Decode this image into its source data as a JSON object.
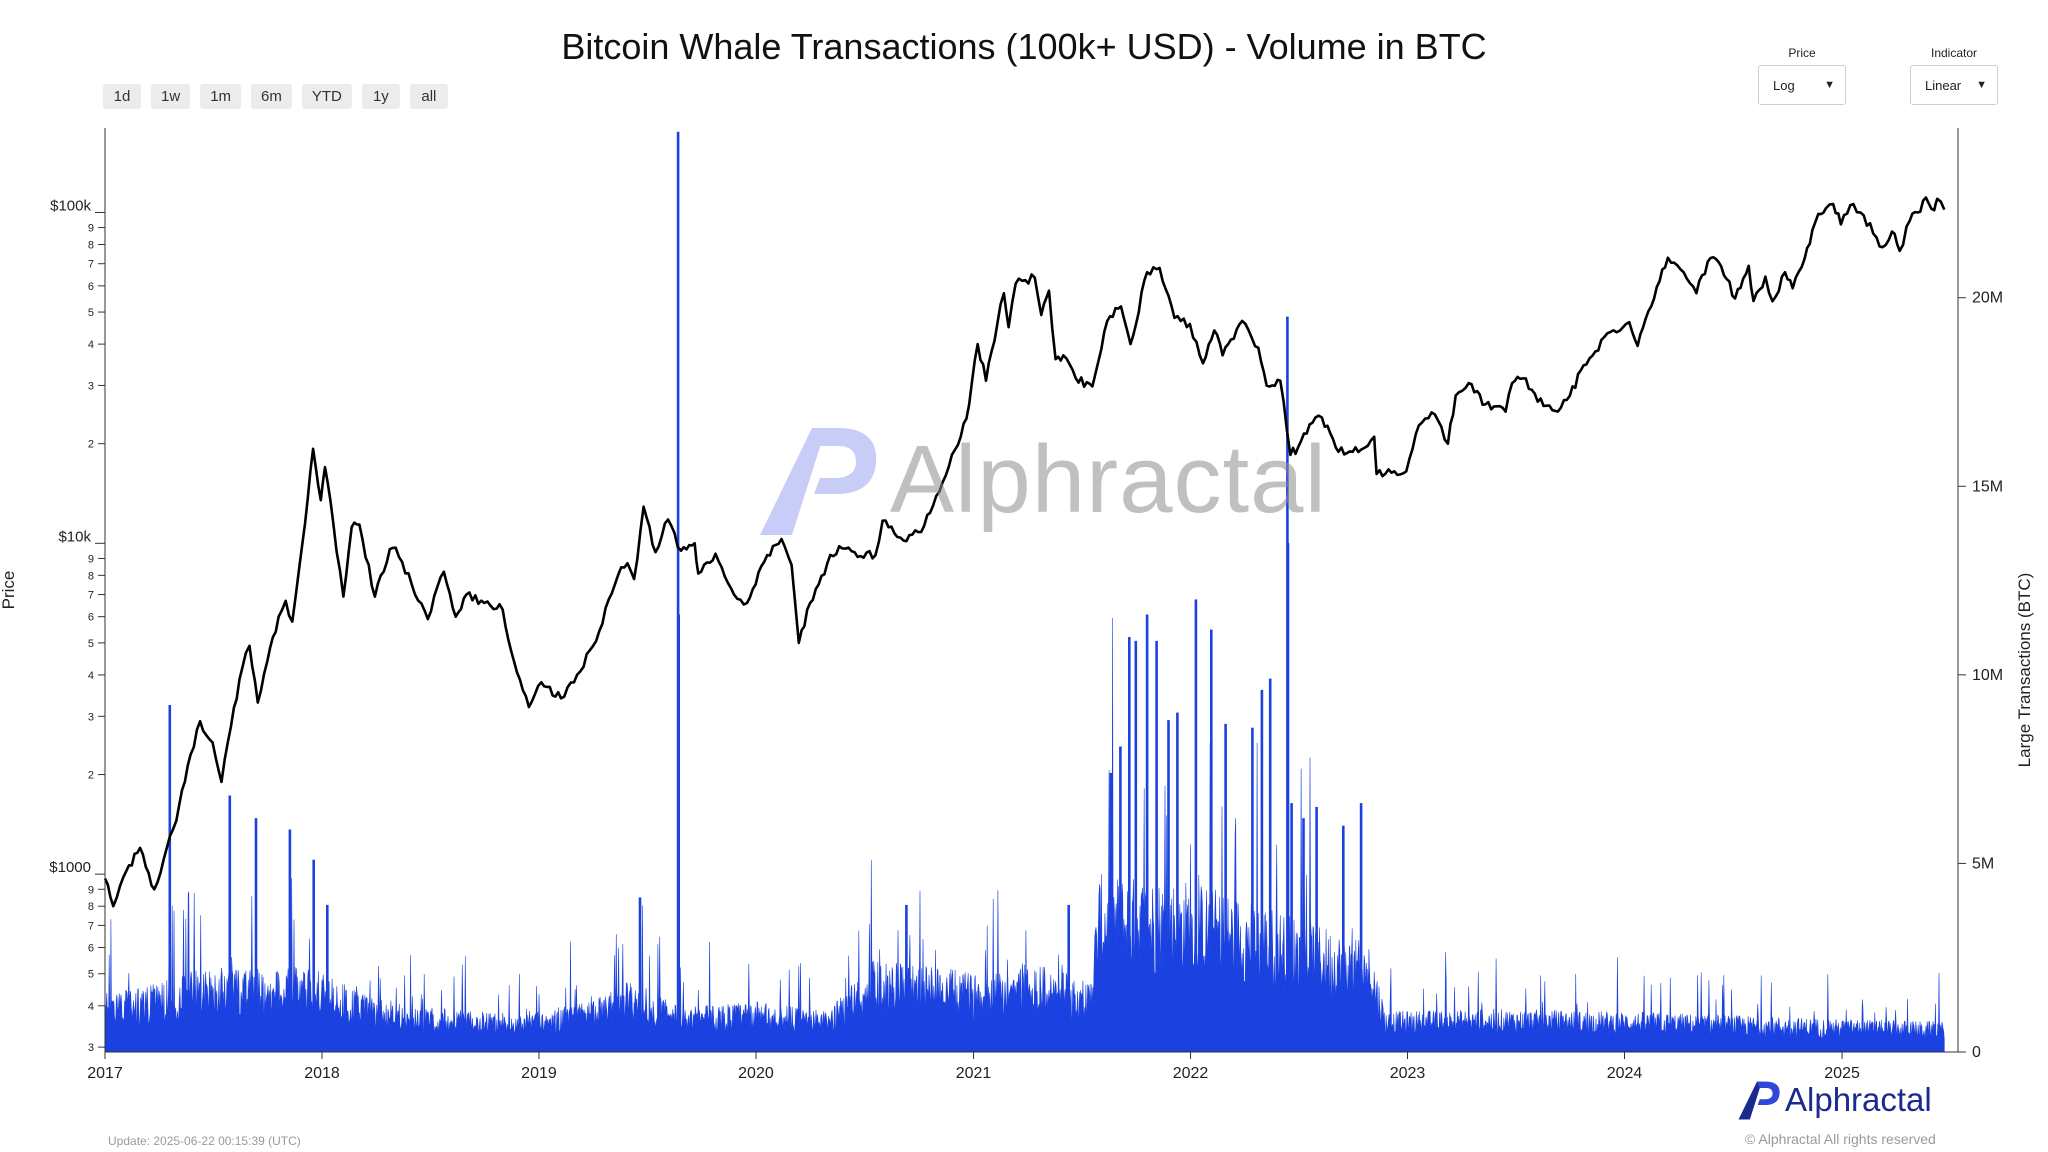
{
  "title": "Bitcoin Whale Transactions (100k+ USD) - Volume in BTC",
  "range_buttons": [
    "1d",
    "1w",
    "1m",
    "6m",
    "YTD",
    "1y",
    "all"
  ],
  "price_control": {
    "label": "Price",
    "value": "Log"
  },
  "indicator_control": {
    "label": "Indicator",
    "value": "Linear"
  },
  "footer": {
    "update": "Update: 2025-06-22 00:15:39 (UTC)",
    "copyright": "© Alphractal All rights reserved",
    "brand": "Alphractal"
  },
  "watermark": "Alphractal",
  "colors": {
    "price_line": "#000000",
    "volume_bars": "#1b42e0",
    "brand": "#1c2a8c"
  },
  "chart_data": {
    "type": "line+bar",
    "title": "Bitcoin Whale Transactions (100k+ USD) - Volume in BTC",
    "x_axis": {
      "type": "date",
      "range": [
        "2017-01-01",
        "2025-07-15"
      ],
      "tick_labels": [
        "2017",
        "2018",
        "2019",
        "2020",
        "2021",
        "2022",
        "2023",
        "2024",
        "2025"
      ]
    },
    "y_axis_left": {
      "label": "Price",
      "scale": "log",
      "range": [
        290,
        180000
      ],
      "major_ticks": [
        {
          "value": 1000,
          "label": "$1000"
        },
        {
          "value": 10000,
          "label": "$10k"
        },
        {
          "value": 100000,
          "label": "$100k"
        }
      ],
      "minor_tick_labels": [
        "3",
        "4",
        "5",
        "6",
        "7",
        "8",
        "9",
        "2",
        "3",
        "4",
        "5",
        "6",
        "7",
        "8",
        "9",
        "2",
        "3",
        "4",
        "5",
        "6",
        "7",
        "8",
        "9"
      ]
    },
    "y_axis_right": {
      "label": "Large Transactions (BTC)",
      "scale": "linear",
      "range": [
        0,
        24500000
      ],
      "ticks": [
        {
          "value": 0,
          "label": "0"
        },
        {
          "value": 5000000,
          "label": "5M"
        },
        {
          "value": 10000000,
          "label": "10M"
        },
        {
          "value": 15000000,
          "label": "15M"
        },
        {
          "value": 20000000,
          "label": "20M"
        }
      ]
    },
    "series": [
      {
        "type": "line",
        "axis": "left",
        "points": [
          [
            "2017-01-01",
            970
          ],
          [
            "2017-01-15",
            800
          ],
          [
            "2017-02-01",
            980
          ],
          [
            "2017-03-01",
            1200
          ],
          [
            "2017-03-25",
            900
          ],
          [
            "2017-04-15",
            1200
          ],
          [
            "2017-05-01",
            1450
          ],
          [
            "2017-05-25",
            2300
          ],
          [
            "2017-06-10",
            2900
          ],
          [
            "2017-07-01",
            2500
          ],
          [
            "2017-07-16",
            1900
          ],
          [
            "2017-08-01",
            2800
          ],
          [
            "2017-08-20",
            4200
          ],
          [
            "2017-09-01",
            4900
          ],
          [
            "2017-09-15",
            3300
          ],
          [
            "2017-10-01",
            4400
          ],
          [
            "2017-10-20",
            6000
          ],
          [
            "2017-11-01",
            6700
          ],
          [
            "2017-11-12",
            5800
          ],
          [
            "2017-11-29",
            10000
          ],
          [
            "2017-12-17",
            19300
          ],
          [
            "2017-12-30",
            13500
          ],
          [
            "2018-01-06",
            17000
          ],
          [
            "2018-01-20",
            11500
          ],
          [
            "2018-02-06",
            6900
          ],
          [
            "2018-02-20",
            11200
          ],
          [
            "2018-03-05",
            11400
          ],
          [
            "2018-03-31",
            6900
          ],
          [
            "2018-04-25",
            9600
          ],
          [
            "2018-05-05",
            9700
          ],
          [
            "2018-06-01",
            7500
          ],
          [
            "2018-06-28",
            5900
          ],
          [
            "2018-07-25",
            8200
          ],
          [
            "2018-08-14",
            6000
          ],
          [
            "2018-09-01",
            7000
          ],
          [
            "2018-10-01",
            6600
          ],
          [
            "2018-11-01",
            6300
          ],
          [
            "2018-11-20",
            4400
          ],
          [
            "2018-12-15",
            3200
          ],
          [
            "2019-01-05",
            3800
          ],
          [
            "2019-02-07",
            3400
          ],
          [
            "2019-03-01",
            3800
          ],
          [
            "2019-04-02",
            4900
          ],
          [
            "2019-05-14",
            8000
          ],
          [
            "2019-05-30",
            8700
          ],
          [
            "2019-06-10",
            7800
          ],
          [
            "2019-06-26",
            12900
          ],
          [
            "2019-07-16",
            9400
          ],
          [
            "2019-08-06",
            11800
          ],
          [
            "2019-08-28",
            9500
          ],
          [
            "2019-09-20",
            10000
          ],
          [
            "2019-09-26",
            8100
          ],
          [
            "2019-10-25",
            9300
          ],
          [
            "2019-11-25",
            7000
          ],
          [
            "2019-12-17",
            6600
          ],
          [
            "2020-01-15",
            8800
          ],
          [
            "2020-02-13",
            10300
          ],
          [
            "2020-03-01",
            8600
          ],
          [
            "2020-03-13",
            5000
          ],
          [
            "2020-04-01",
            6600
          ],
          [
            "2020-04-30",
            8700
          ],
          [
            "2020-05-20",
            9800
          ],
          [
            "2020-06-15",
            9400
          ],
          [
            "2020-07-20",
            9200
          ],
          [
            "2020-08-01",
            11700
          ],
          [
            "2020-09-05",
            10200
          ],
          [
            "2020-10-10",
            11300
          ],
          [
            "2020-10-25",
            13000
          ],
          [
            "2020-11-15",
            16000
          ],
          [
            "2020-12-01",
            19200
          ],
          [
            "2020-12-20",
            23800
          ],
          [
            "2021-01-08",
            40000
          ],
          [
            "2021-01-22",
            31000
          ],
          [
            "2021-02-10",
            46000
          ],
          [
            "2021-02-21",
            57000
          ],
          [
            "2021-03-01",
            45000
          ],
          [
            "2021-03-13",
            61000
          ],
          [
            "2021-04-14",
            63500
          ],
          [
            "2021-04-25",
            49000
          ],
          [
            "2021-05-08",
            58000
          ],
          [
            "2021-05-19",
            36000
          ],
          [
            "2021-06-01",
            37000
          ],
          [
            "2021-06-22",
            31500
          ],
          [
            "2021-07-20",
            29800
          ],
          [
            "2021-08-14",
            47000
          ],
          [
            "2021-09-06",
            52000
          ],
          [
            "2021-09-22",
            40000
          ],
          [
            "2021-10-20",
            66000
          ],
          [
            "2021-11-10",
            68000
          ],
          [
            "2021-11-25",
            56000
          ],
          [
            "2021-12-05",
            48000
          ],
          [
            "2021-12-31",
            46000
          ],
          [
            "2022-01-22",
            35000
          ],
          [
            "2022-02-10",
            44000
          ],
          [
            "2022-02-24",
            37000
          ],
          [
            "2022-03-29",
            47000
          ],
          [
            "2022-04-25",
            39000
          ],
          [
            "2022-05-09",
            30000
          ],
          [
            "2022-06-01",
            31000
          ],
          [
            "2022-06-18",
            18500
          ],
          [
            "2022-07-01",
            19500
          ],
          [
            "2022-07-30",
            24000
          ],
          [
            "2022-08-10",
            24000
          ],
          [
            "2022-09-07",
            18900
          ],
          [
            "2022-10-15",
            19200
          ],
          [
            "2022-11-06",
            21000
          ],
          [
            "2022-11-10",
            16200
          ],
          [
            "2022-12-30",
            16500
          ],
          [
            "2023-01-20",
            22700
          ],
          [
            "2023-02-16",
            24500
          ],
          [
            "2023-03-10",
            20000
          ],
          [
            "2023-03-23",
            28000
          ],
          [
            "2023-04-14",
            30500
          ],
          [
            "2023-05-12",
            26300
          ],
          [
            "2023-06-15",
            25000
          ],
          [
            "2023-06-26",
            30500
          ],
          [
            "2023-07-14",
            31500
          ],
          [
            "2023-08-18",
            26000
          ],
          [
            "2023-09-11",
            25000
          ],
          [
            "2023-10-01",
            27900
          ],
          [
            "2023-10-24",
            34500
          ],
          [
            "2023-12-08",
            43500
          ],
          [
            "2024-01-09",
            46600
          ],
          [
            "2024-01-23",
            39500
          ],
          [
            "2024-02-15",
            52000
          ],
          [
            "2024-02-29",
            62000
          ],
          [
            "2024-03-14",
            73000
          ],
          [
            "2024-04-15",
            63000
          ],
          [
            "2024-05-01",
            57000
          ],
          [
            "2024-05-20",
            71000
          ],
          [
            "2024-06-07",
            71000
          ],
          [
            "2024-07-05",
            55000
          ],
          [
            "2024-07-28",
            69000
          ],
          [
            "2024-08-05",
            54000
          ],
          [
            "2024-08-25",
            64000
          ],
          [
            "2024-09-06",
            53900
          ],
          [
            "2024-09-27",
            66000
          ],
          [
            "2024-10-10",
            59000
          ],
          [
            "2024-10-30",
            72500
          ],
          [
            "2024-11-12",
            88500
          ],
          [
            "2024-11-22",
            99000
          ],
          [
            "2024-12-05",
            103000
          ],
          [
            "2024-12-17",
            106000
          ],
          [
            "2024-12-30",
            92000
          ],
          [
            "2025-01-20",
            106000
          ],
          [
            "2025-02-01",
            100000
          ],
          [
            "2025-02-28",
            84000
          ],
          [
            "2025-03-10",
            78500
          ],
          [
            "2025-03-26",
            87500
          ],
          [
            "2025-04-08",
            76500
          ],
          [
            "2025-04-25",
            94500
          ],
          [
            "2025-05-08",
            100000
          ],
          [
            "2025-05-22",
            111000
          ],
          [
            "2025-06-05",
            101500
          ],
          [
            "2025-06-10",
            110000
          ],
          [
            "2025-06-22",
            102000
          ]
        ]
      },
      {
        "type": "bar",
        "axis": "right",
        "regimes": [
          [
            "2017-01-01",
            1200000
          ],
          [
            "2017-03-15",
            1300000
          ],
          [
            "2017-06-01",
            1600000
          ],
          [
            "2017-11-01",
            1700000
          ],
          [
            "2018-01-01",
            1600000
          ],
          [
            "2018-03-01",
            1200000
          ],
          [
            "2018-06-01",
            900000
          ],
          [
            "2018-12-01",
            750000
          ],
          [
            "2019-04-01",
            1000000
          ],
          [
            "2019-06-01",
            1400000
          ],
          [
            "2019-09-01",
            900000
          ],
          [
            "2020-01-01",
            1000000
          ],
          [
            "2020-05-01",
            800000
          ],
          [
            "2020-07-15",
            1800000
          ],
          [
            "2020-11-01",
            1700000
          ],
          [
            "2021-01-15",
            1500000
          ],
          [
            "2021-04-01",
            1800000
          ],
          [
            "2021-07-15",
            1400000
          ],
          [
            "2021-08-01",
            3500000
          ],
          [
            "2022-01-01",
            3400000
          ],
          [
            "2022-07-01",
            2700000
          ],
          [
            "2022-11-01",
            2100000
          ],
          [
            "2022-11-25",
            800000
          ],
          [
            "2023-06-01",
            850000
          ],
          [
            "2024-01-01",
            800000
          ],
          [
            "2025-01-01",
            650000
          ],
          [
            "2025-06-22",
            600000
          ]
        ],
        "spikes": [
          [
            "2017-04-20",
            9200000
          ],
          [
            "2017-07-30",
            6800000
          ],
          [
            "2017-09-12",
            6200000
          ],
          [
            "2017-11-08",
            5900000
          ],
          [
            "2017-12-18",
            5100000
          ],
          [
            "2018-01-10",
            3900000
          ],
          [
            "2019-06-20",
            4100000
          ],
          [
            "2019-08-23",
            24400000
          ],
          [
            "2019-08-24",
            11600000
          ],
          [
            "2020-09-10",
            3900000
          ],
          [
            "2021-06-10",
            3900000
          ],
          [
            "2021-08-20",
            7400000
          ],
          [
            "2021-09-05",
            8100000
          ],
          [
            "2021-09-20",
            11000000
          ],
          [
            "2021-10-01",
            10900000
          ],
          [
            "2021-10-20",
            11600000
          ],
          [
            "2021-11-05",
            10900000
          ],
          [
            "2021-11-25",
            8800000
          ],
          [
            "2021-12-10",
            9000000
          ],
          [
            "2022-01-10",
            12000000
          ],
          [
            "2022-02-05",
            11200000
          ],
          [
            "2022-03-01",
            8700000
          ],
          [
            "2022-04-15",
            8600000
          ],
          [
            "2022-05-01",
            9600000
          ],
          [
            "2022-05-15",
            9900000
          ],
          [
            "2022-06-13",
            19500000
          ],
          [
            "2022-06-14",
            13500000
          ],
          [
            "2022-06-20",
            6600000
          ],
          [
            "2022-07-10",
            6200000
          ],
          [
            "2022-08-01",
            6500000
          ],
          [
            "2022-09-15",
            6000000
          ],
          [
            "2022-10-15",
            6600000
          ]
        ]
      }
    ]
  }
}
